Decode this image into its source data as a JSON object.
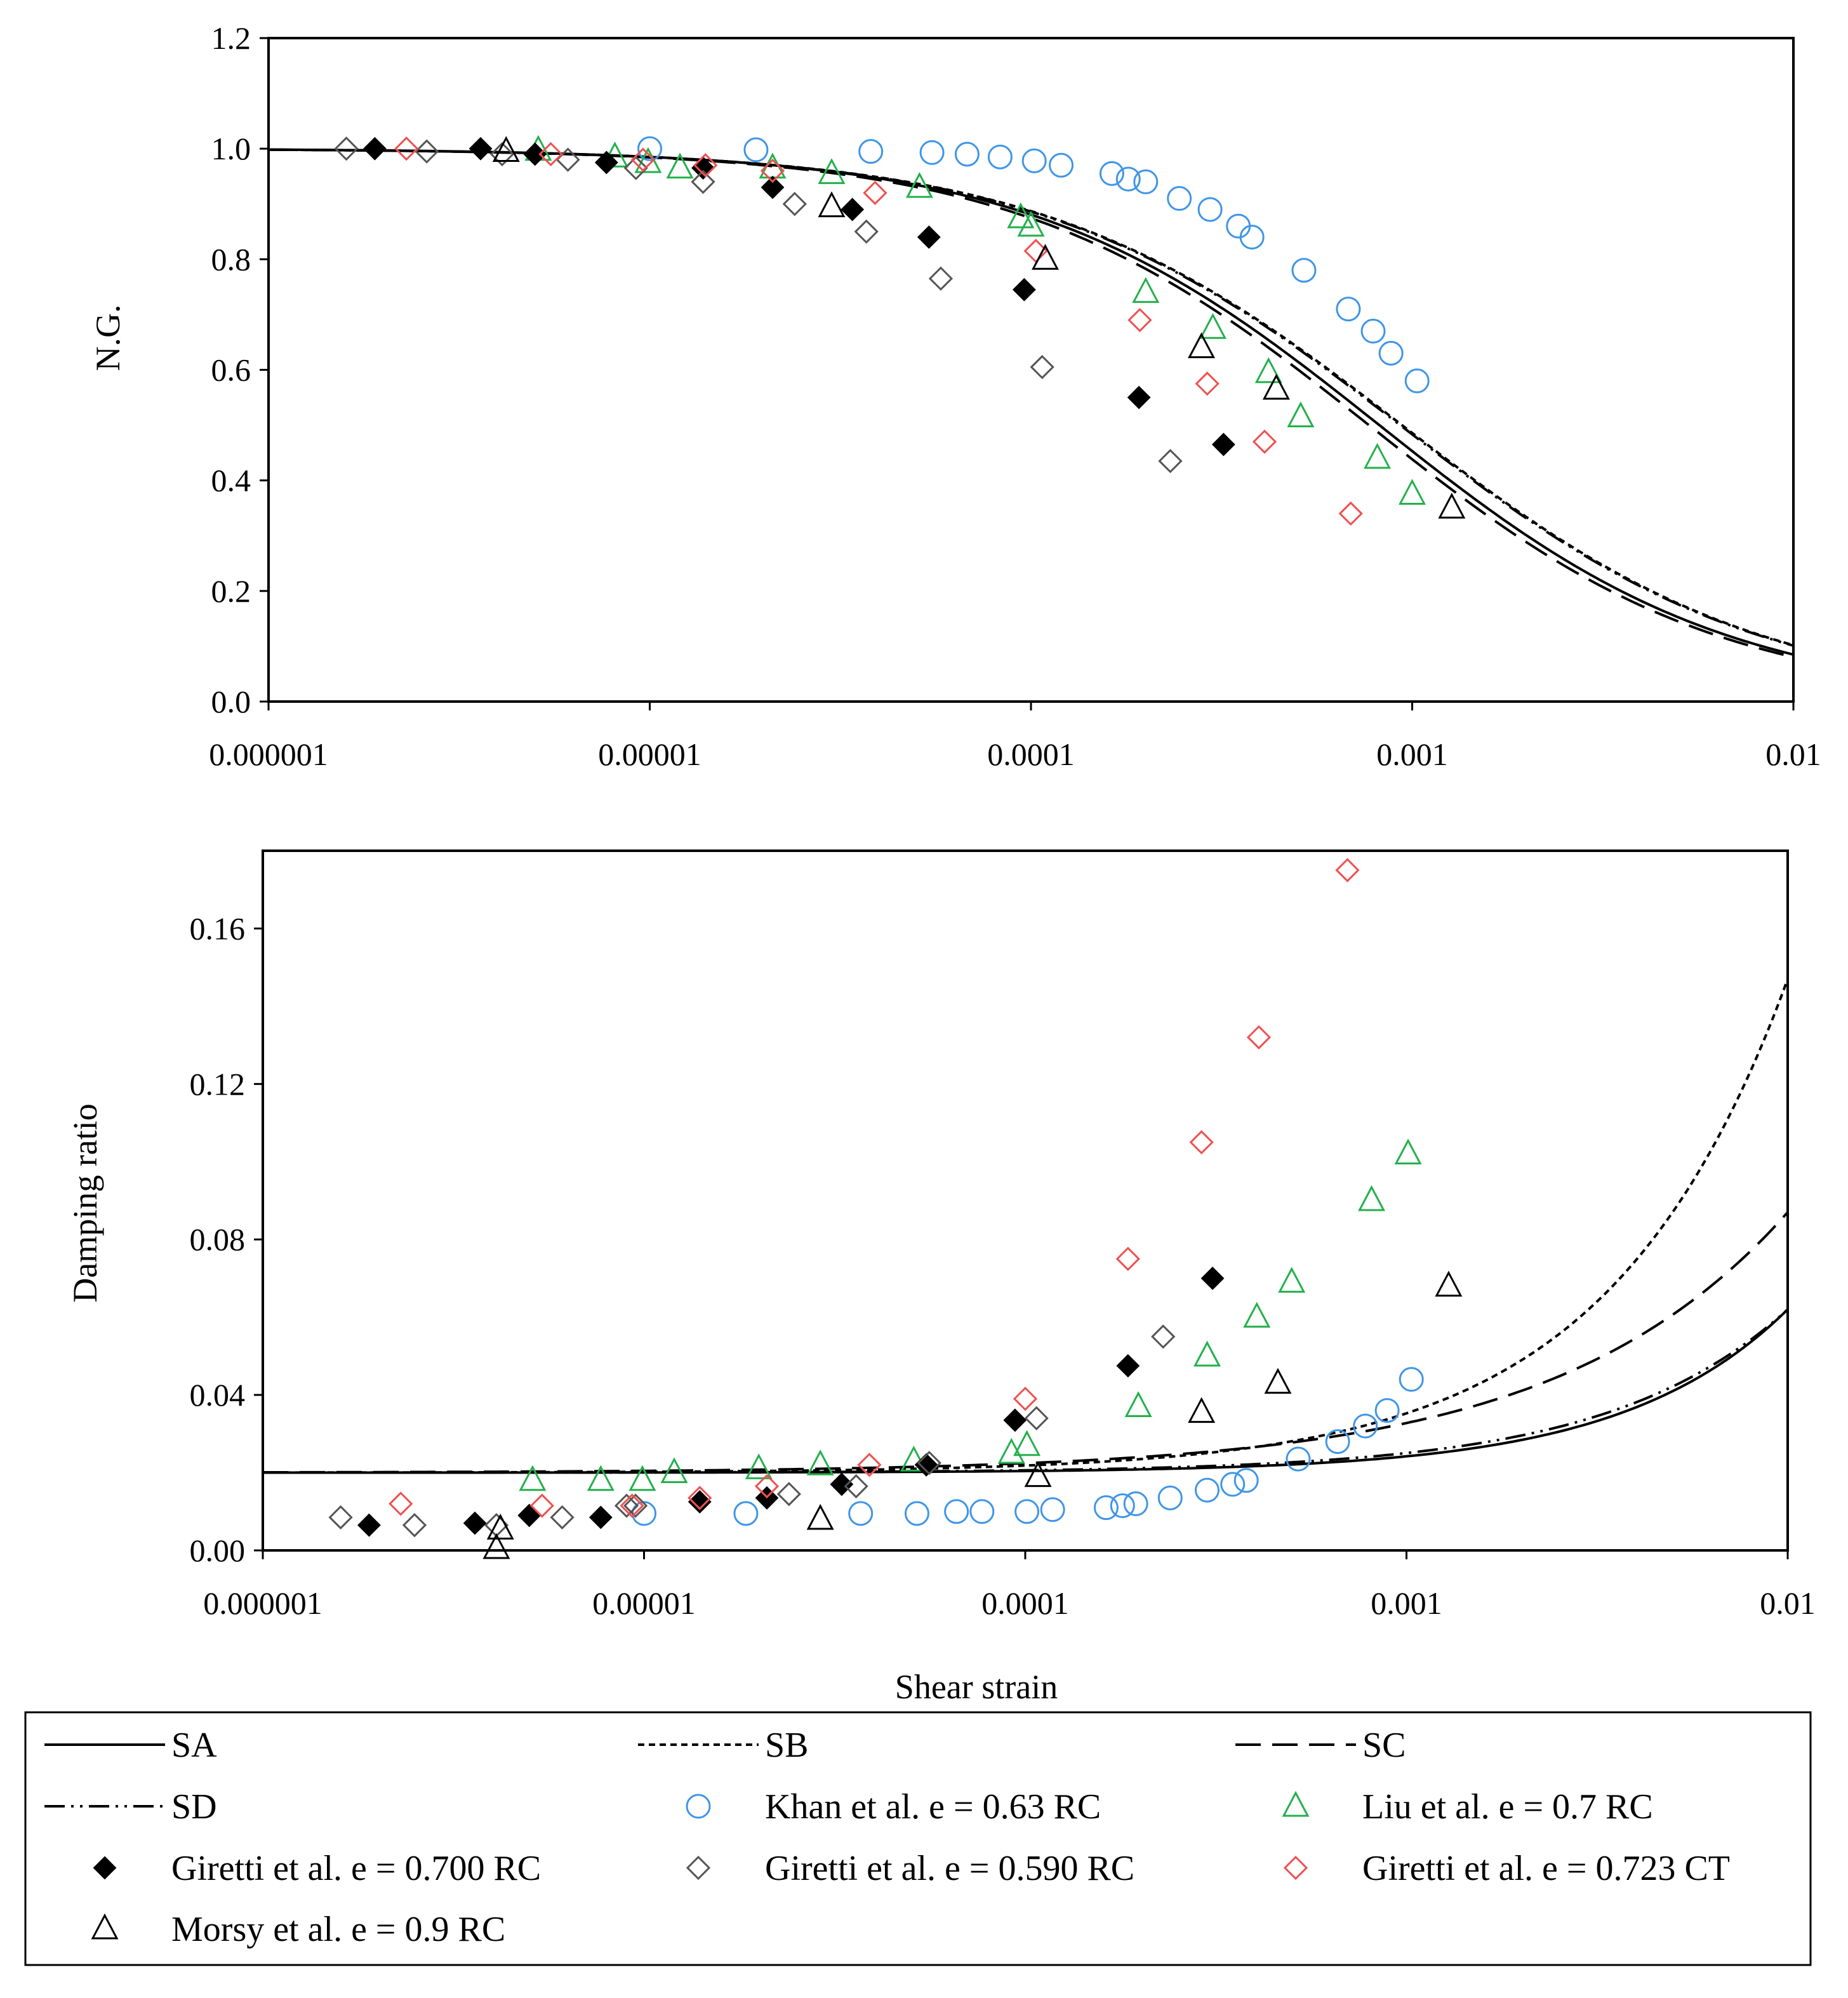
{
  "x_ticks": [
    "0.000001",
    "0.00001",
    "0.0001",
    "0.001",
    "0.01"
  ],
  "xlabel": "Shear strain",
  "legend": {
    "curves": [
      {
        "key": "SA",
        "label": "SA",
        "dash": "solid"
      },
      {
        "key": "SB",
        "label": "SB",
        "dash": "short-dash"
      },
      {
        "key": "SC",
        "label": "SC",
        "dash": "long-dash"
      },
      {
        "key": "SD",
        "label": "SD",
        "dash": "dash-dot-dot"
      }
    ],
    "markers": [
      {
        "key": "khan",
        "label": "Khan et al. e = 0.63 RC",
        "marker": "circle",
        "color": "#3f95e8",
        "filled": false
      },
      {
        "key": "liu",
        "label": "Liu et al. e = 0.7 RC",
        "marker": "triangle",
        "color": "#22b04b",
        "filled": false
      },
      {
        "key": "g700",
        "label": "Giretti et al. e = 0.700 RC",
        "marker": "diamond",
        "color": "#000000",
        "filled": true
      },
      {
        "key": "g590",
        "label": "Giretti et al. e = 0.590 RC",
        "marker": "diamond",
        "color": "#555555",
        "filled": false
      },
      {
        "key": "g723",
        "label": "Giretti et al. e = 0.723 CT",
        "marker": "diamond",
        "color": "#f05050",
        "filled": false
      },
      {
        "key": "morsy",
        "label": "Morsy et al. e = 0.9 RC",
        "marker": "triangle",
        "color": "#000000",
        "filled": false
      }
    ]
  },
  "chart_data": [
    {
      "type": "scatter",
      "title": "",
      "xlabel": "",
      "ylabel": "N.G.",
      "xscale": "log",
      "xlim": [
        1e-06,
        0.01
      ],
      "ylim": [
        0,
        1.2
      ],
      "yticks": [
        "0.0",
        "0.2",
        "0.4",
        "0.6",
        "0.8",
        "1.0",
        "1.2"
      ],
      "curves": [
        {
          "name": "SA",
          "model": "hyperbolic",
          "gamma_ref": 0.00082,
          "exponent": 0.95
        },
        {
          "name": "SB",
          "model": "hyperbolic",
          "gamma_ref": 0.00094,
          "exponent": 0.92
        },
        {
          "name": "SC",
          "model": "hyperbolic",
          "gamma_ref": 0.00077,
          "exponent": 0.95
        },
        {
          "name": "SD",
          "model": "hyperbolic",
          "gamma_ref": 0.00093,
          "exponent": 0.92
        }
      ],
      "series": [
        {
          "name": "khan",
          "x": [
            1e-05,
            1.9e-05,
            3.8e-05,
            5.5e-05,
            6.8e-05,
            8.3e-05,
            0.000102,
            0.00012,
            0.000163,
            0.00018,
            0.0002,
            0.000245,
            0.000295,
            0.00035,
            0.00038,
            0.00052,
            0.00068,
            0.00079,
            0.00088,
            0.00103
          ],
          "y": [
            1.0,
            0.998,
            0.995,
            0.993,
            0.99,
            0.985,
            0.978,
            0.97,
            0.955,
            0.945,
            0.94,
            0.91,
            0.89,
            0.86,
            0.84,
            0.78,
            0.71,
            0.67,
            0.63,
            0.58
          ]
        },
        {
          "name": "liu",
          "x": [
            5.1e-06,
            8.1e-06,
            9.9e-06,
            1.2e-05,
            2.1e-05,
            3e-05,
            5.1e-05,
            9.4e-05,
            0.0001,
            0.0002,
            0.0003,
            0.00042,
            0.00051,
            0.00081,
            0.001
          ],
          "y": [
            0.997,
            0.985,
            0.975,
            0.965,
            0.965,
            0.955,
            0.93,
            0.875,
            0.86,
            0.74,
            0.675,
            0.595,
            0.515,
            0.44,
            0.375
          ]
        },
        {
          "name": "g700",
          "x": [
            1.9e-06,
            3.6e-06,
            5e-06,
            7.7e-06,
            1.38e-05,
            2.1e-05,
            3.4e-05,
            5.4e-05,
            9.6e-05,
            0.000192,
            0.00032
          ],
          "y": [
            1.0,
            1.0,
            0.99,
            0.975,
            0.965,
            0.93,
            0.89,
            0.84,
            0.745,
            0.55,
            0.465
          ]
        },
        {
          "name": "g590",
          "x": [
            1.6e-06,
            2.6e-06,
            4.1e-06,
            6.1e-06,
            9.2e-06,
            1.38e-05,
            2.4e-05,
            3.7e-05,
            5.8e-05,
            0.000107,
            0.000232
          ],
          "y": [
            1.0,
            0.995,
            0.99,
            0.98,
            0.965,
            0.94,
            0.9,
            0.85,
            0.765,
            0.605,
            0.435
          ]
        },
        {
          "name": "g723",
          "x": [
            2.3e-06,
            5.5e-06,
            9.6e-06,
            1.4e-05,
            2.1e-05,
            3.9e-05,
            0.000103,
            0.000193,
            0.00029,
            0.00041,
            0.00069
          ],
          "y": [
            1.0,
            0.99,
            0.98,
            0.97,
            0.96,
            0.92,
            0.815,
            0.69,
            0.575,
            0.47,
            0.34
          ]
        },
        {
          "name": "morsy",
          "x": [
            4.2e-06,
            3e-05,
            0.000109,
            0.00028,
            0.00044,
            0.00127
          ],
          "y": [
            0.995,
            0.895,
            0.8,
            0.64,
            0.565,
            0.35
          ]
        }
      ]
    },
    {
      "type": "scatter",
      "title": "",
      "xlabel": "Shear strain",
      "ylabel": "Damping ratio",
      "xscale": "log",
      "xlim": [
        1e-06,
        0.01
      ],
      "ylim": [
        0,
        0.18
      ],
      "yticks": [
        "0.00",
        "0.04",
        "0.08",
        "0.12",
        "0.16"
      ],
      "curves": [
        {
          "name": "SA",
          "model": "power",
          "base": 0.02,
          "gamma_ref": 0.01,
          "amplitude": 0.042,
          "exponent": 1.0
        },
        {
          "name": "SB",
          "model": "power",
          "base": 0.02,
          "gamma_ref": 0.01,
          "amplitude": 0.127,
          "exponent": 0.92
        },
        {
          "name": "SC",
          "model": "power",
          "base": 0.02,
          "gamma_ref": 0.01,
          "amplitude": 0.067,
          "exponent": 0.72
        },
        {
          "name": "SD",
          "model": "power",
          "base": 0.02,
          "gamma_ref": 0.01,
          "amplitude": 0.042,
          "exponent": 0.92
        }
      ],
      "series": [
        {
          "name": "khan",
          "x": [
            1e-05,
            1.85e-05,
            3.7e-05,
            5.2e-05,
            6.6e-05,
            7.7e-05,
            0.000101,
            0.000118,
            0.000163,
            0.00018,
            0.000195,
            0.00024,
            0.0003,
            0.00035,
            0.00038,
            0.00052,
            0.00066,
            0.00078,
            0.00089,
            0.00103
          ],
          "y": [
            0.0095,
            0.0095,
            0.0095,
            0.0095,
            0.01,
            0.01,
            0.01,
            0.0105,
            0.011,
            0.0115,
            0.012,
            0.0135,
            0.0155,
            0.017,
            0.018,
            0.0235,
            0.028,
            0.032,
            0.036,
            0.044
          ]
        },
        {
          "name": "liu",
          "x": [
            5.1e-06,
            7.7e-06,
            9.9e-06,
            1.2e-05,
            2e-05,
            2.9e-05,
            5.1e-05,
            9.2e-05,
            0.000101,
            0.000198,
            0.0003,
            0.000405,
            0.0005,
            0.00081,
            0.00101
          ],
          "y": [
            0.018,
            0.018,
            0.018,
            0.02,
            0.021,
            0.022,
            0.023,
            0.025,
            0.027,
            0.037,
            0.05,
            0.06,
            0.069,
            0.09,
            0.102
          ]
        },
        {
          "name": "g700",
          "x": [
            1.9e-06,
            3.6e-06,
            5e-06,
            7.7e-06,
            1.4e-05,
            2.1e-05,
            3.3e-05,
            5.5e-05,
            9.4e-05,
            0.000186,
            0.00031
          ],
          "y": [
            0.0065,
            0.007,
            0.009,
            0.0085,
            0.0125,
            0.0135,
            0.017,
            0.022,
            0.0335,
            0.0475,
            0.07
          ]
        },
        {
          "name": "g590",
          "x": [
            1.6e-06,
            2.5e-06,
            4.1e-06,
            6.1e-06,
            9e-06,
            9.5e-06,
            2.4e-05,
            3.6e-05,
            5.6e-05,
            0.000107,
            0.00023
          ],
          "y": [
            0.0085,
            0.0065,
            0.0065,
            0.0085,
            0.0115,
            0.0115,
            0.0145,
            0.0165,
            0.0225,
            0.034,
            0.055
          ]
        },
        {
          "name": "g723",
          "x": [
            2.3e-06,
            5.4e-06,
            9.3e-06,
            1.4e-05,
            2.1e-05,
            3.9e-05,
            0.0001,
            0.000186,
            0.00029,
            0.00041,
            0.0007
          ],
          "y": [
            0.012,
            0.0115,
            0.0115,
            0.0135,
            0.0165,
            0.022,
            0.039,
            0.075,
            0.105,
            0.132,
            0.175
          ]
        },
        {
          "name": "morsy",
          "x": [
            4.1e-06,
            4.2e-06,
            2.9e-05,
            0.000108,
            0.00029,
            0.00046,
            0.00129
          ],
          "y": [
            0.0005,
            0.0055,
            0.008,
            0.019,
            0.0355,
            0.043,
            0.068
          ]
        }
      ]
    }
  ]
}
